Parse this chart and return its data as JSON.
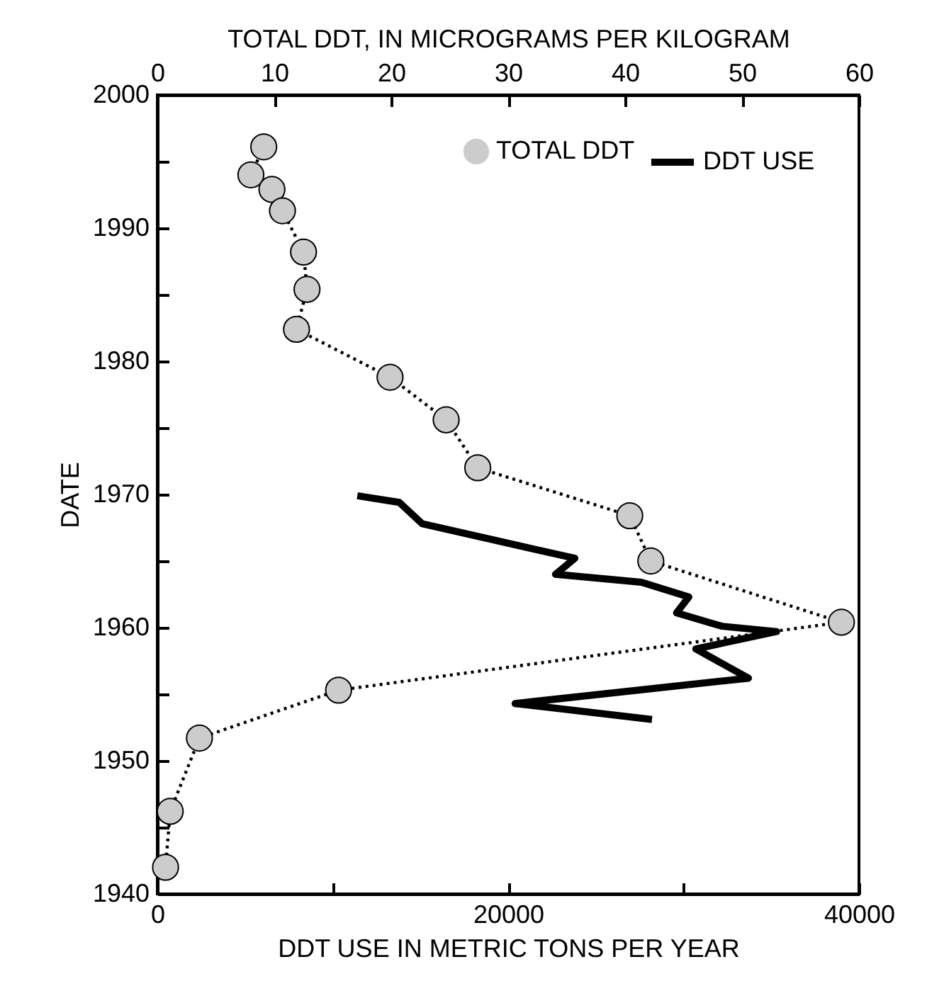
{
  "chart_data": {
    "type": "line",
    "xlabel": "DDT USE IN METRIC TONS PER YEAR",
    "x2label": "TOTAL DDT, IN MICROGRAMS PER KILOGRAM",
    "ylabel": "DATE",
    "xlim": [
      0,
      40000
    ],
    "xticks": [
      0,
      {
        "value": 10000,
        "label": null
      },
      20000,
      {
        "value": 30000,
        "label": null
      },
      40000
    ],
    "x2lim": [
      0,
      60
    ],
    "x2ticks": [
      0,
      10,
      20,
      30,
      40,
      50,
      60
    ],
    "ylim": [
      1940,
      2000
    ],
    "yticks": [
      1940,
      {
        "value": 1945,
        "label": null
      },
      1950,
      {
        "value": 1955,
        "label": null
      },
      1960,
      {
        "value": 1965,
        "label": null
      },
      1970,
      {
        "value": 1975,
        "label": null
      },
      1980,
      {
        "value": 1985,
        "label": null
      },
      1990,
      {
        "value": 1995,
        "label": null
      },
      2000
    ],
    "legend": "top right",
    "grid": false,
    "series": [
      {
        "name": "TOTAL DDT",
        "color": "#cccccc",
        "axis": "x2",
        "marker": "circle",
        "line_style": "dotted",
        "x": [
          9.1,
          8.0,
          9.8,
          10.7,
          12.5,
          12.8,
          11.9,
          19.9,
          24.7,
          27.4,
          40.4,
          42.2,
          58.5,
          15.5,
          3.6,
          1.1,
          0.7
        ],
        "values": [
          1996.1,
          1994.0,
          1992.9,
          1991.3,
          1988.2,
          1985.4,
          1982.4,
          1978.8,
          1975.6,
          1972.0,
          1968.4,
          1965.0,
          1960.4,
          1955.3,
          1951.7,
          1946.2,
          1942.0
        ]
      },
      {
        "name": "DDT USE",
        "color": "#000000",
        "marker": "none",
        "line_style": "solid",
        "x": [
          11400,
          13800,
          15100,
          23800,
          22700,
          27600,
          30300,
          29600,
          32200,
          35300,
          30700,
          33700,
          20400,
          28200
        ],
        "values": [
          1969.9,
          1969.4,
          1967.8,
          1965.2,
          1964.0,
          1963.4,
          1962.3,
          1961.1,
          1960.1,
          1959.7,
          1958.4,
          1956.2,
          1954.3,
          1953.1
        ]
      }
    ]
  }
}
